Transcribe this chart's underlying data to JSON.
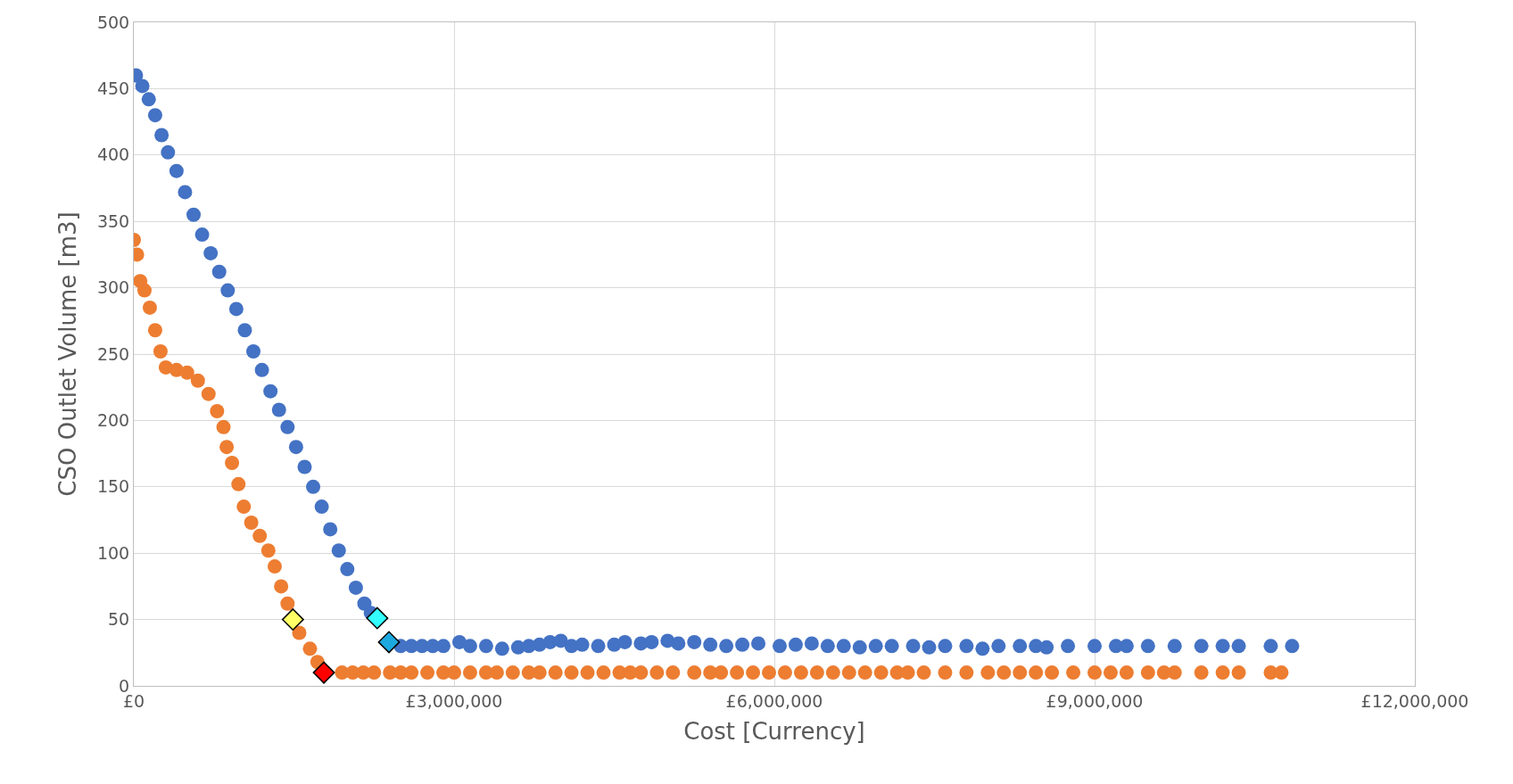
{
  "chart_data": {
    "type": "scatter",
    "xlabel": "Cost [Currency]",
    "ylabel": "CSO Outlet Volume [m3]",
    "xlim": [
      0,
      12000000
    ],
    "ylim": [
      0,
      500
    ],
    "xticks": [
      {
        "value": 0,
        "label": "£0"
      },
      {
        "value": 3000000,
        "label": "£3,000,000"
      },
      {
        "value": 6000000,
        "label": "£6,000,000"
      },
      {
        "value": 9000000,
        "label": "£9,000,000"
      },
      {
        "value": 12000000,
        "label": "£12,000,000"
      }
    ],
    "yticks": [
      0,
      50,
      100,
      150,
      200,
      250,
      300,
      350,
      400,
      450,
      500
    ],
    "grid": true,
    "marker": "circle",
    "series": [
      {
        "color": "#4472c4",
        "x": [
          20000,
          80000,
          140000,
          200000,
          260000,
          320000,
          400000,
          480000,
          560000,
          640000,
          720000,
          800000,
          880000,
          960000,
          1040000,
          1120000,
          1200000,
          1280000,
          1360000,
          1440000,
          1520000,
          1600000,
          1680000,
          1760000,
          1840000,
          1920000,
          2000000,
          2080000,
          2160000,
          2220000,
          2500000,
          2600000,
          2700000,
          2800000,
          2900000,
          3050000,
          3150000,
          3300000,
          3450000,
          3600000,
          3700000,
          3800000,
          3900000,
          4000000,
          4100000,
          4200000,
          4350000,
          4500000,
          4600000,
          4750000,
          4850000,
          5000000,
          5100000,
          5250000,
          5400000,
          5550000,
          5700000,
          5850000,
          6050000,
          6200000,
          6350000,
          6500000,
          6650000,
          6800000,
          6950000,
          7100000,
          7300000,
          7450000,
          7600000,
          7800000,
          7950000,
          8100000,
          8300000,
          8450000,
          8550000,
          8750000,
          9000000,
          9200000,
          9300000,
          9500000,
          9750000,
          10000000,
          10200000,
          10350000,
          10650000,
          10850000
        ],
        "values": [
          460,
          452,
          442,
          430,
          415,
          402,
          388,
          372,
          355,
          340,
          326,
          312,
          298,
          284,
          268,
          252,
          238,
          222,
          208,
          195,
          180,
          165,
          150,
          135,
          118,
          102,
          88,
          74,
          62,
          55,
          30,
          30,
          30,
          30,
          30,
          33,
          30,
          30,
          28,
          29,
          30,
          31,
          33,
          34,
          30,
          31,
          30,
          31,
          33,
          32,
          33,
          34,
          32,
          33,
          31,
          30,
          31,
          32,
          30,
          31,
          32,
          30,
          30,
          29,
          30,
          30,
          30,
          29,
          30,
          30,
          28,
          30,
          30,
          30,
          29,
          30,
          30,
          30,
          30,
          30,
          30,
          30,
          30,
          30,
          30,
          30
        ]
      },
      {
        "color": "#ed7d31",
        "x": [
          0,
          30000,
          60000,
          100000,
          150000,
          200000,
          250000,
          300000,
          400000,
          500000,
          600000,
          700000,
          780000,
          840000,
          870000,
          920000,
          980000,
          1030000,
          1100000,
          1180000,
          1260000,
          1320000,
          1380000,
          1440000,
          1550000,
          1650000,
          1720000,
          1950000,
          2050000,
          2150000,
          2250000,
          2400000,
          2500000,
          2600000,
          2750000,
          2900000,
          3000000,
          3150000,
          3300000,
          3400000,
          3550000,
          3700000,
          3800000,
          3950000,
          4100000,
          4250000,
          4400000,
          4550000,
          4650000,
          4750000,
          4900000,
          5050000,
          5250000,
          5400000,
          5500000,
          5650000,
          5800000,
          5950000,
          6100000,
          6250000,
          6400000,
          6550000,
          6700000,
          6850000,
          7000000,
          7150000,
          7250000,
          7400000,
          7600000,
          7800000,
          8000000,
          8150000,
          8300000,
          8450000,
          8600000,
          8800000,
          9000000,
          9150000,
          9300000,
          9500000,
          9650000,
          9750000,
          10000000,
          10200000,
          10350000,
          10650000,
          10750000
        ],
        "values": [
          336,
          325,
          305,
          298,
          285,
          268,
          252,
          240,
          238,
          236,
          230,
          220,
          207,
          195,
          180,
          168,
          152,
          135,
          123,
          113,
          102,
          90,
          75,
          62,
          40,
          28,
          18,
          10,
          10,
          10,
          10,
          10,
          10,
          10,
          10,
          10,
          10,
          10,
          10,
          10,
          10,
          10,
          10,
          10,
          10,
          10,
          10,
          10,
          10,
          10,
          10,
          10,
          10,
          10,
          10,
          10,
          10,
          10,
          10,
          10,
          10,
          10,
          10,
          10,
          10,
          10,
          10,
          10,
          10,
          10,
          10,
          10,
          10,
          10,
          10,
          10,
          10,
          10,
          10,
          10,
          10,
          10,
          10,
          10,
          10,
          10,
          10
        ]
      },
      {
        "color": "#ffff66",
        "marker": "diamond",
        "x": [
          1490000
        ],
        "values": [
          50
        ]
      },
      {
        "color": "#ff0000",
        "marker": "diamond",
        "x": [
          1780000
        ],
        "values": [
          10
        ]
      },
      {
        "color": "#33ffff",
        "marker": "diamond",
        "x": [
          2280000
        ],
        "values": [
          51
        ]
      },
      {
        "color": "#1ca9e0",
        "marker": "diamond",
        "x": [
          2390000
        ],
        "values": [
          33
        ]
      }
    ]
  }
}
